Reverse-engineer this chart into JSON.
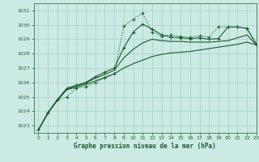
{
  "title": "Graphe pression niveau de la mer (hPa)",
  "bg_color": "#cceae4",
  "grid_color": "#aad4cc",
  "line_color": "#1a5c2a",
  "xlim": [
    -0.5,
    23
  ],
  "ylim": [
    1022.5,
    1031.5
  ],
  "yticks": [
    1023,
    1024,
    1025,
    1026,
    1027,
    1028,
    1029,
    1030,
    1031
  ],
  "xticks": [
    0,
    1,
    2,
    3,
    4,
    5,
    6,
    7,
    8,
    9,
    10,
    11,
    12,
    13,
    14,
    15,
    16,
    17,
    18,
    19,
    20,
    21,
    22,
    23
  ],
  "series1_x": [
    0,
    1,
    2,
    3,
    4,
    5,
    6,
    7,
    8,
    9,
    10,
    11,
    12,
    13,
    14,
    15,
    16,
    17,
    18,
    19,
    20,
    21,
    22,
    23
  ],
  "series1_y": [
    1022.7,
    1023.9,
    1024.8,
    1025.0,
    1025.6,
    1025.7,
    1026.0,
    1026.3,
    1026.6,
    1029.9,
    1030.4,
    1030.8,
    1029.5,
    1029.2,
    1029.3,
    1029.2,
    1029.15,
    1029.25,
    1029.15,
    1029.85,
    1029.85,
    1029.85,
    1029.75,
    1028.65
  ],
  "series2_x": [
    0,
    1,
    2,
    3,
    4,
    5,
    6,
    7,
    8,
    9,
    10,
    11,
    12,
    13,
    14,
    15,
    16,
    17,
    18,
    19,
    20,
    21,
    22,
    23
  ],
  "series2_y": [
    1022.7,
    1023.9,
    1024.8,
    1025.6,
    1025.8,
    1026.0,
    1026.4,
    1026.7,
    1027.0,
    1028.4,
    1029.5,
    1030.05,
    1029.7,
    1029.3,
    1029.15,
    1029.1,
    1029.05,
    1029.1,
    1029.0,
    1029.05,
    1029.85,
    1029.85,
    1029.75,
    1028.65
  ],
  "series3_x": [
    0,
    1,
    2,
    3,
    4,
    5,
    6,
    7,
    8,
    9,
    10,
    11,
    12,
    13,
    14,
    15,
    16,
    17,
    18,
    19,
    20,
    21,
    22,
    23
  ],
  "series3_y": [
    1022.7,
    1023.9,
    1024.8,
    1025.55,
    1025.75,
    1025.95,
    1026.3,
    1026.55,
    1026.85,
    1027.7,
    1028.3,
    1028.75,
    1029.0,
    1028.9,
    1028.85,
    1028.85,
    1028.8,
    1028.8,
    1028.8,
    1028.85,
    1028.9,
    1029.1,
    1029.3,
    1028.6
  ],
  "series4_x": [
    0,
    1,
    2,
    3,
    4,
    5,
    6,
    7,
    8,
    9,
    10,
    11,
    12,
    13,
    14,
    15,
    16,
    17,
    18,
    19,
    20,
    21,
    22,
    23
  ],
  "series4_y": [
    1022.7,
    1023.85,
    1024.75,
    1025.5,
    1025.65,
    1025.85,
    1026.1,
    1026.35,
    1026.6,
    1027.0,
    1027.3,
    1027.55,
    1027.8,
    1027.95,
    1028.05,
    1028.1,
    1028.15,
    1028.25,
    1028.35,
    1028.45,
    1028.55,
    1028.65,
    1028.8,
    1028.6
  ]
}
